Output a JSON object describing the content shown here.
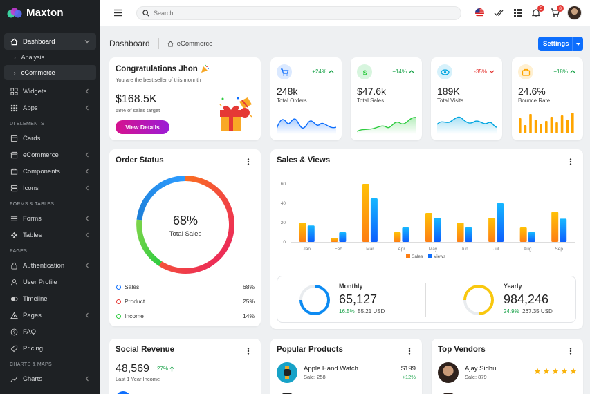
{
  "brand": {
    "name": "Maxton"
  },
  "sidebar": {
    "dashboard": {
      "label": "Dashboard"
    },
    "subs": [
      {
        "label": "Analysis"
      },
      {
        "label": "eCommerce"
      }
    ],
    "items_a": [
      {
        "label": "Widgets"
      },
      {
        "label": "Apps"
      }
    ],
    "section_ui": "UI ELEMENTS",
    "items_ui": [
      {
        "label": "Cards"
      },
      {
        "label": "eCommerce"
      },
      {
        "label": "Components"
      },
      {
        "label": "Icons"
      }
    ],
    "section_forms": "FORMS & TABLES",
    "items_forms": [
      {
        "label": "Forms"
      },
      {
        "label": "Tables"
      }
    ],
    "section_pages": "PAGES",
    "items_pages": [
      {
        "label": "Authentication"
      },
      {
        "label": "User Profile"
      },
      {
        "label": "Timeline"
      },
      {
        "label": "Pages"
      },
      {
        "label": "FAQ"
      },
      {
        "label": "Pricing"
      }
    ],
    "section_charts": "CHARTS & MAPS",
    "items_charts": [
      {
        "label": "Charts"
      }
    ]
  },
  "topbar": {
    "search_placeholder": "Search",
    "notifications_count": "5",
    "cart_count": "8"
  },
  "breadcrumb": {
    "title": "Dashboard",
    "current": "eCommerce"
  },
  "settings_button": {
    "label": "Settings"
  },
  "congrats": {
    "title": "Congratulations Jhon",
    "subtitle": "You are the best seller of this monnth",
    "amount": "$168.5K",
    "target": "58% of sales target",
    "button": "View Details"
  },
  "stats": [
    {
      "value": "248k",
      "label": "Total Orders",
      "change": "+24%",
      "trend": "up",
      "color": "#0d6efd"
    },
    {
      "value": "$47.6k",
      "label": "Total Sales",
      "change": "+14%",
      "trend": "up",
      "color": "#2ecc40"
    },
    {
      "value": "189K",
      "label": "Total Visits",
      "change": "-35%",
      "trend": "down",
      "color": "#00a5e0"
    },
    {
      "value": "24.6%",
      "label": "Bounce Rate",
      "change": "+18%",
      "trend": "up",
      "color": "#ffa500"
    }
  ],
  "order_status": {
    "title": "Order Status",
    "center_value": "68%",
    "center_label": "Total Sales",
    "legend": [
      {
        "label": "Sales",
        "value": "68%",
        "color": "#0d6efd"
      },
      {
        "label": "Product",
        "value": "25%",
        "color": "#e53935"
      },
      {
        "label": "Income",
        "value": "14%",
        "color": "#2ecc40"
      }
    ]
  },
  "sales_views": {
    "title": "Sales & Views",
    "monthly": {
      "label": "Monthly",
      "value": "65,127",
      "change": "16.5%",
      "sub": "55.21 USD"
    },
    "yearly": {
      "label": "Yearly",
      "value": "984,246",
      "change": "24.9%",
      "sub": "267.35 USD"
    }
  },
  "chart_data": {
    "type": "bar",
    "categories": [
      "Jan",
      "Feb",
      "Mar",
      "Apr",
      "May",
      "Jun",
      "Jul",
      "Aug",
      "Sep"
    ],
    "series": [
      {
        "name": "Sales",
        "values": [
          20,
          4,
          60,
          10,
          30,
          20,
          25,
          15,
          31
        ],
        "color": "#fd7e14"
      },
      {
        "name": "Views",
        "values": [
          17,
          10,
          45,
          15,
          25,
          15,
          40,
          10,
          24
        ],
        "color": "#0d6efd"
      }
    ],
    "ylim": [
      0,
      60
    ],
    "yticks": [
      0,
      20,
      40,
      60
    ],
    "grid": false,
    "legend": "bottom"
  },
  "social_revenue": {
    "title": "Social Revenue",
    "value": "48,569",
    "change": "27%",
    "sub": "Last 1 Year Income"
  },
  "popular_products": {
    "title": "Popular Products",
    "item": {
      "name": "Apple Hand Watch",
      "sale": "Sale: 258",
      "price": "$199",
      "change": "+12%"
    }
  },
  "top_vendors": {
    "title": "Top Vendors",
    "item": {
      "name": "Ajay Sidhu",
      "sale": "Sale: 879",
      "stars": 5
    }
  }
}
